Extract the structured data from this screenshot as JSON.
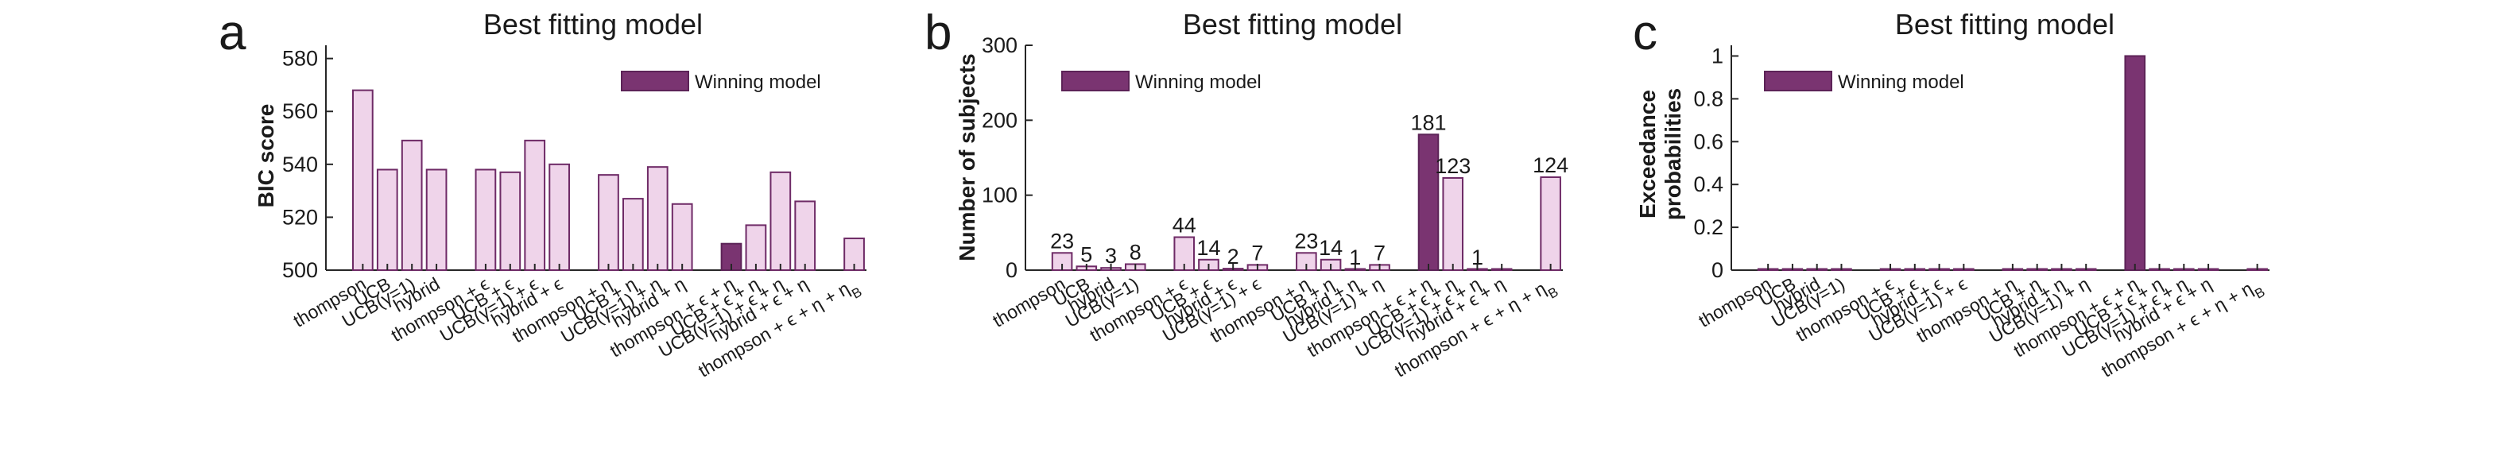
{
  "colors": {
    "winning_fill": "#7a3471",
    "winning_stroke": "#5c2357",
    "bar_fill": "#efd4ea",
    "bar_stroke": "#6e2a66",
    "axis": "#262626"
  },
  "chart_data": [
    {
      "type": "bar",
      "panel_letter": "a",
      "title": "Best fitting model",
      "ylabel": "BIC score",
      "xlabel": "",
      "ylim": [
        500,
        585
      ],
      "yticks": [
        "500",
        "520",
        "540",
        "560",
        "580"
      ],
      "legend": "Winning model",
      "legend_position": "top-right",
      "categories": [
        "thompson",
        "UCB",
        "UCB(γ=1)",
        "hybrid",
        "thompson + ϵ",
        "UCB + ϵ",
        "UCB(γ=1) + ϵ",
        "hybrid + ϵ",
        "thompson + η",
        "UCB + η",
        "UCB(γ=1) + η",
        "hybrid + η",
        "thompson + ϵ + η",
        "UCB + ϵ + η",
        "UCB(γ=1) + ϵ + η",
        "hybrid + ϵ + η",
        "thompson + ϵ + η + ηB"
      ],
      "positions": [
        1,
        2,
        3,
        4,
        6,
        7,
        8,
        9,
        11,
        12,
        13,
        14,
        16,
        17,
        18,
        19,
        21
      ],
      "values": [
        568,
        538,
        549,
        538,
        538,
        537,
        549,
        540,
        536,
        527,
        539,
        525,
        510,
        517,
        537,
        526,
        512
      ],
      "winning_index": 12,
      "data_labels": []
    },
    {
      "type": "bar",
      "panel_letter": "b",
      "title": "Best fitting model",
      "ylabel": "Number of subjects",
      "xlabel": "",
      "ylim": [
        0,
        300
      ],
      "yticks": [
        "0",
        "100",
        "200",
        "300"
      ],
      "legend": "Winning model",
      "legend_position": "top-left",
      "categories": [
        "thompson",
        "UCB",
        "hybrid",
        "UCB(γ=1)",
        "thompson + ϵ",
        "UCB + ϵ",
        "hybrid + ϵ",
        "UCB(γ=1) + ϵ",
        "thompson + η",
        "UCB + η",
        "hybrid + η",
        "UCB(γ=1) + η",
        "thompson + ϵ + η",
        "UCB + ϵ + η",
        "UCB(γ=1) + ϵ + η",
        "hybrid + ϵ + η",
        "thompson + ϵ + η + ηB"
      ],
      "positions": [
        1,
        2,
        3,
        4,
        6,
        7,
        8,
        9,
        11,
        12,
        13,
        14,
        16,
        17,
        18,
        19,
        21
      ],
      "values": [
        23,
        5,
        3,
        8,
        44,
        14,
        2,
        7,
        23,
        14,
        1,
        7,
        181,
        123,
        1,
        0,
        124
      ],
      "winning_index": 12,
      "data_labels": [
        "23",
        "5",
        "3",
        "8",
        "44",
        "14",
        "2",
        "7",
        "23",
        "14",
        "1",
        "7",
        "181",
        "123",
        "1",
        "",
        "124"
      ]
    },
    {
      "type": "bar",
      "panel_letter": "c",
      "title": "Best fitting model",
      "ylabel": [
        "Exceedance",
        "probabilities"
      ],
      "xlabel": "",
      "ylim": [
        0,
        1.05
      ],
      "yticks": [
        "0",
        "0.2",
        "0.4",
        "0.6",
        "0.8",
        "1"
      ],
      "legend": "Winning model",
      "legend_position": "top-left",
      "categories": [
        "thompson",
        "UCB",
        "hybrid",
        "UCB(γ=1)",
        "thompson + ϵ",
        "UCB + ϵ",
        "hybrid + ϵ",
        "UCB(γ=1) + ϵ",
        "thompson + η",
        "UCB + η",
        "hybrid + η",
        "UCB(γ=1) + η",
        "thompson + ϵ + η",
        "UCB + ϵ + η",
        "UCB(γ=1) + ϵ + η",
        "hybrid + ϵ + η",
        "thompson + ϵ + η + ηB"
      ],
      "positions": [
        1,
        2,
        3,
        4,
        6,
        7,
        8,
        9,
        11,
        12,
        13,
        14,
        16,
        17,
        18,
        19,
        21
      ],
      "values": [
        0,
        0,
        0,
        0,
        0,
        0,
        0,
        0,
        0,
        0,
        0,
        0,
        1,
        0,
        0,
        0,
        0
      ],
      "winning_index": 12,
      "data_labels": []
    }
  ]
}
